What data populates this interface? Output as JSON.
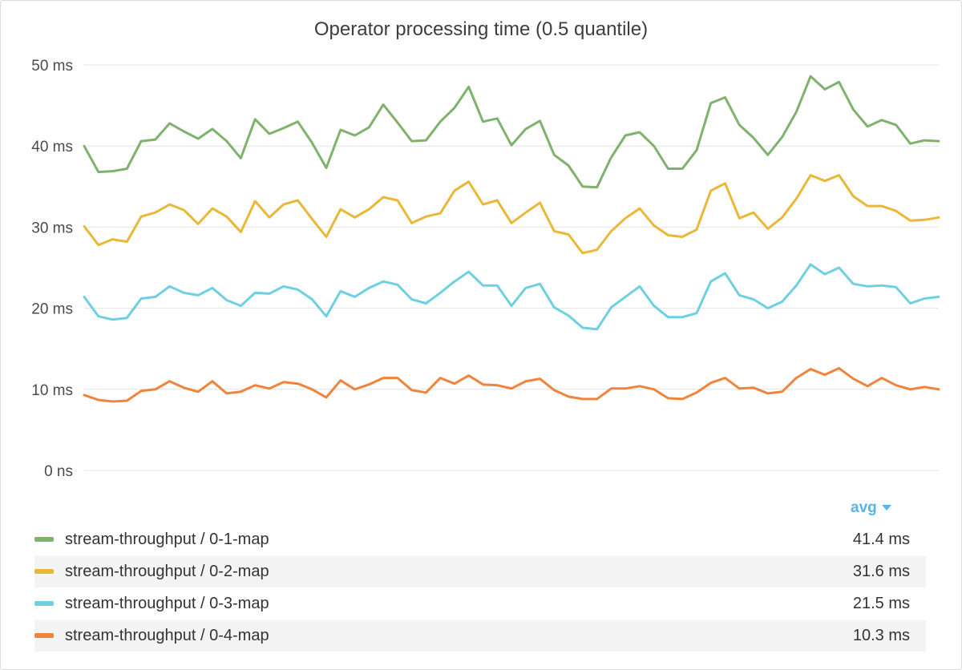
{
  "panel": {
    "title": "Operator processing time (0.5 quantile)"
  },
  "legend": {
    "sort_label": "avg"
  },
  "chart_data": {
    "type": "line",
    "title": "Operator processing time (0.5 quantile)",
    "ylabel": "",
    "xlabel": "",
    "ylim": [
      0,
      50
    ],
    "yticks": [
      {
        "value": 0,
        "label": "0 ns"
      },
      {
        "value": 10,
        "label": "10 ms"
      },
      {
        "value": 20,
        "label": "20 ms"
      },
      {
        "value": 30,
        "label": "30 ms"
      },
      {
        "value": 40,
        "label": "40 ms"
      },
      {
        "value": 50,
        "label": "50 ms"
      }
    ],
    "grid": true,
    "legend_placement": "bottom",
    "series": [
      {
        "name": "stream-throughput / 0-1-map",
        "color": "#7eb26d",
        "avg": "41.4 ms",
        "values": [
          40.0,
          36.8,
          36.9,
          37.2,
          40.6,
          40.8,
          42.8,
          41.8,
          40.9,
          42.1,
          40.6,
          38.5,
          43.3,
          41.5,
          42.2,
          43.0,
          40.4,
          37.3,
          42.0,
          41.3,
          42.3,
          45.1,
          42.9,
          40.6,
          40.7,
          43.0,
          44.7,
          47.3,
          43.0,
          43.4,
          40.1,
          42.1,
          43.1,
          38.9,
          37.6,
          35.0,
          34.9,
          38.6,
          41.3,
          41.7,
          40.0,
          37.2,
          37.2,
          39.5,
          45.3,
          46.0,
          42.6,
          41.0,
          38.9,
          41.1,
          44.2,
          48.6,
          47.0,
          47.9,
          44.5,
          42.4,
          43.2,
          42.6,
          40.3,
          40.7,
          40.6
        ]
      },
      {
        "name": "stream-throughput / 0-2-map",
        "color": "#eab839",
        "avg": "31.6 ms",
        "values": [
          30.1,
          27.8,
          28.5,
          28.2,
          31.3,
          31.8,
          32.8,
          32.1,
          30.4,
          32.3,
          31.3,
          29.4,
          33.2,
          31.2,
          32.8,
          33.3,
          31.0,
          28.8,
          32.2,
          31.2,
          32.2,
          33.7,
          33.3,
          30.5,
          31.3,
          31.7,
          34.5,
          35.6,
          32.8,
          33.3,
          30.5,
          31.8,
          33.0,
          29.5,
          29.1,
          26.8,
          27.2,
          29.5,
          31.1,
          32.3,
          30.2,
          29.0,
          28.8,
          29.7,
          34.5,
          35.4,
          31.1,
          31.8,
          29.8,
          31.2,
          33.5,
          36.4,
          35.7,
          36.4,
          33.8,
          32.6,
          32.6,
          32.0,
          30.8,
          30.9,
          31.2
        ]
      },
      {
        "name": "stream-throughput / 0-3-map",
        "color": "#6ed0e0",
        "avg": "21.5 ms",
        "values": [
          21.4,
          19.0,
          18.6,
          18.8,
          21.2,
          21.4,
          22.7,
          21.9,
          21.6,
          22.5,
          21.0,
          20.3,
          21.9,
          21.8,
          22.7,
          22.3,
          21.1,
          19.0,
          22.1,
          21.4,
          22.5,
          23.3,
          22.9,
          21.1,
          20.6,
          21.9,
          23.3,
          24.5,
          22.8,
          22.8,
          20.3,
          22.5,
          23.0,
          20.1,
          19.1,
          17.6,
          17.4,
          20.1,
          21.4,
          22.7,
          20.3,
          18.9,
          18.9,
          19.4,
          23.3,
          24.3,
          21.6,
          21.1,
          20.0,
          20.8,
          22.8,
          25.4,
          24.2,
          25.0,
          23.0,
          22.7,
          22.8,
          22.6,
          20.6,
          21.2,
          21.4
        ]
      },
      {
        "name": "stream-throughput / 0-4-map",
        "color": "#ef843c",
        "avg": "10.3 ms",
        "values": [
          9.3,
          8.7,
          8.5,
          8.6,
          9.8,
          10.0,
          11.0,
          10.2,
          9.7,
          11.0,
          9.5,
          9.7,
          10.5,
          10.1,
          10.9,
          10.7,
          10.0,
          9.0,
          11.1,
          10.0,
          10.6,
          11.4,
          11.4,
          9.9,
          9.6,
          11.4,
          10.7,
          11.7,
          10.6,
          10.5,
          10.1,
          11.0,
          11.3,
          9.9,
          9.1,
          8.8,
          8.8,
          10.1,
          10.1,
          10.4,
          10.0,
          8.9,
          8.8,
          9.6,
          10.8,
          11.4,
          10.1,
          10.2,
          9.5,
          9.7,
          11.4,
          12.5,
          11.8,
          12.6,
          11.3,
          10.4,
          11.4,
          10.5,
          10.0,
          10.3,
          10.0
        ]
      }
    ]
  }
}
